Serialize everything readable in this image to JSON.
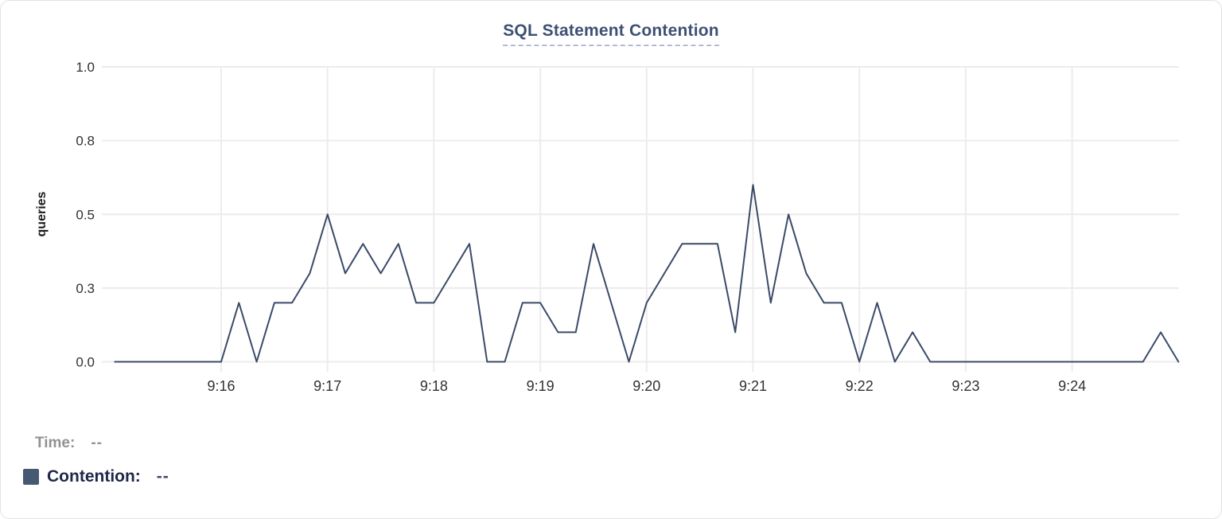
{
  "chart_data": {
    "type": "line",
    "title": "SQL Statement Contention",
    "xlabel": "",
    "ylabel": "queries",
    "ylim": [
      0,
      1.0
    ],
    "grid": true,
    "legend_position": "bottom-left",
    "y_ticks": [
      {
        "label": "0.0",
        "value": 0
      },
      {
        "label": "0.3",
        "value": 0.25
      },
      {
        "label": "0.5",
        "value": 0.5
      },
      {
        "label": "0.8",
        "value": 0.75
      },
      {
        "label": "1.0",
        "value": 1.0
      }
    ],
    "x_tick_labels": [
      "9:16",
      "9:17",
      "9:18",
      "9:19",
      "9:20",
      "9:21",
      "9:22",
      "9:23",
      "9:24"
    ],
    "x_start": "9:15:00",
    "x_end": "9:25:00",
    "interval_seconds": 10,
    "series": [
      {
        "name": "Contention",
        "color": "#3b4a68",
        "values": [
          0,
          0,
          0,
          0,
          0,
          0,
          0,
          0.2,
          0,
          0.2,
          0.2,
          0.3,
          0.5,
          0.3,
          0.4,
          0.3,
          0.4,
          0.2,
          0.2,
          0.3,
          0.4,
          0,
          0,
          0.2,
          0.2,
          0.1,
          0.1,
          0.4,
          0.2,
          0,
          0.2,
          0.3,
          0.4,
          0.4,
          0.4,
          0.1,
          0.6,
          0.2,
          0.5,
          0.3,
          0.2,
          0.2,
          0,
          0.2,
          0,
          0.1,
          0,
          0,
          0,
          0,
          0,
          0,
          0,
          0,
          0,
          0,
          0,
          0,
          0,
          0.1,
          0
        ]
      }
    ]
  },
  "legend": {
    "time_label": "Time:",
    "time_value": "--",
    "series_label": "Contention:",
    "series_value": "--",
    "swatch_color": "#475872"
  },
  "colors": {
    "line": "#3b4a68",
    "gridline": "#ececec",
    "axis_text": "#303134",
    "title_text": "#3d5174",
    "title_underline": "#b5bad4",
    "legend_time_text": "#929296",
    "legend_series_text": "#1d2849"
  }
}
